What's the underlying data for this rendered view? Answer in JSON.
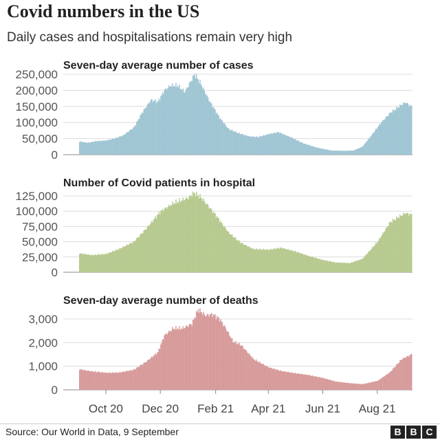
{
  "header": {
    "title": "Covid numbers in the US",
    "subtitle": "Daily cases and hospitalisations remain very high"
  },
  "footer": {
    "source": "Source: Our World in Data, 9 September",
    "logo_letters": [
      "B",
      "B",
      "C"
    ]
  },
  "colors": {
    "cases": "#9fc5d3",
    "hospital": "#b6c98e",
    "deaths": "#d79a9a",
    "grid": "#dcdcdc",
    "axis": "#999999"
  },
  "chart_data": [
    {
      "type": "bar",
      "title": "Seven-day average number of cases",
      "ylim": [
        0,
        250000
      ],
      "yticks": [
        0,
        50000,
        100000,
        150000,
        200000,
        250000
      ],
      "ytick_labels": [
        "0",
        "50,000",
        "100,000",
        "150,000",
        "200,000",
        "250,000"
      ],
      "date_range": [
        "2020-09-01",
        "2021-09-08"
      ],
      "series": [
        {
          "points": [
            [
              "2020-09-01",
              41000
            ],
            [
              "2020-09-10",
              37000
            ],
            [
              "2020-09-20",
              42000
            ],
            [
              "2020-10-01",
              44000
            ],
            [
              "2020-10-10",
              50000
            ],
            [
              "2020-10-20",
              60000
            ],
            [
              "2020-11-01",
              85000
            ],
            [
              "2020-11-10",
              130000
            ],
            [
              "2020-11-20",
              170000
            ],
            [
              "2020-11-28",
              165000
            ],
            [
              "2020-12-05",
              200000
            ],
            [
              "2020-12-12",
              215000
            ],
            [
              "2020-12-20",
              215000
            ],
            [
              "2020-12-28",
              195000
            ],
            [
              "2021-01-03",
              225000
            ],
            [
              "2021-01-08",
              250000
            ],
            [
              "2021-01-14",
              225000
            ],
            [
              "2021-01-25",
              165000
            ],
            [
              "2021-02-05",
              115000
            ],
            [
              "2021-02-15",
              80000
            ],
            [
              "2021-02-25",
              68000
            ],
            [
              "2021-03-10",
              57000
            ],
            [
              "2021-03-20",
              55000
            ],
            [
              "2021-04-01",
              64000
            ],
            [
              "2021-04-12",
              70000
            ],
            [
              "2021-04-25",
              55000
            ],
            [
              "2021-05-10",
              35000
            ],
            [
              "2021-05-25",
              22000
            ],
            [
              "2021-06-10",
              13000
            ],
            [
              "2021-06-25",
              12000
            ],
            [
              "2021-07-05",
              13000
            ],
            [
              "2021-07-15",
              25000
            ],
            [
              "2021-07-25",
              60000
            ],
            [
              "2021-08-05",
              100000
            ],
            [
              "2021-08-15",
              130000
            ],
            [
              "2021-08-25",
              150000
            ],
            [
              "2021-09-01",
              163000
            ],
            [
              "2021-09-05",
              155000
            ],
            [
              "2021-09-08",
              150000
            ]
          ]
        }
      ]
    },
    {
      "type": "bar",
      "title": "Number of Covid patients in hospital",
      "ylim": [
        0,
        125000
      ],
      "yticks": [
        0,
        25000,
        50000,
        75000,
        100000,
        125000
      ],
      "ytick_labels": [
        "0",
        "25,000",
        "50,000",
        "75,000",
        "100,000",
        "125,000"
      ],
      "date_range": [
        "2020-09-01",
        "2021-09-08"
      ],
      "series": [
        {
          "points": [
            [
              "2020-09-01",
              31000
            ],
            [
              "2020-09-15",
              28000
            ],
            [
              "2020-10-01",
              30000
            ],
            [
              "2020-10-15",
              38000
            ],
            [
              "2020-11-01",
              50000
            ],
            [
              "2020-11-15",
              72000
            ],
            [
              "2020-12-01",
              100000
            ],
            [
              "2020-12-15",
              113000
            ],
            [
              "2021-01-01",
              122000
            ],
            [
              "2021-01-07",
              130000
            ],
            [
              "2021-01-15",
              123000
            ],
            [
              "2021-02-01",
              93000
            ],
            [
              "2021-02-15",
              65000
            ],
            [
              "2021-03-01",
              48000
            ],
            [
              "2021-03-15",
              38000
            ],
            [
              "2021-04-01",
              37000
            ],
            [
              "2021-04-15",
              40000
            ],
            [
              "2021-05-01",
              34000
            ],
            [
              "2021-05-15",
              27000
            ],
            [
              "2021-06-01",
              20000
            ],
            [
              "2021-06-15",
              16000
            ],
            [
              "2021-07-01",
              15000
            ],
            [
              "2021-07-15",
              22000
            ],
            [
              "2021-08-01",
              50000
            ],
            [
              "2021-08-15",
              82000
            ],
            [
              "2021-09-01",
              97000
            ],
            [
              "2021-09-08",
              94000
            ]
          ]
        }
      ]
    },
    {
      "type": "bar",
      "title": "Seven-day average number of deaths",
      "ylim": [
        0,
        3000
      ],
      "yticks": [
        0,
        1000,
        2000,
        3000
      ],
      "ytick_labels": [
        "0",
        "1,000",
        "2,000",
        "3,000"
      ],
      "date_range": [
        "2020-09-01",
        "2021-09-08"
      ],
      "xticks": [
        "2020-10-01",
        "2020-12-01",
        "2021-02-01",
        "2021-04-01",
        "2021-06-01",
        "2021-08-01"
      ],
      "xtick_labels": [
        "Oct 20",
        "Dec 20",
        "Feb 21",
        "Apr 21",
        "Jun 21",
        "Aug 21"
      ],
      "series": [
        {
          "points": [
            [
              "2020-09-01",
              870
            ],
            [
              "2020-09-15",
              780
            ],
            [
              "2020-10-01",
              720
            ],
            [
              "2020-10-15",
              730
            ],
            [
              "2020-11-01",
              850
            ],
            [
              "2020-11-15",
              1200
            ],
            [
              "2020-11-28",
              1600
            ],
            [
              "2020-12-05",
              2300
            ],
            [
              "2020-12-15",
              2600
            ],
            [
              "2020-12-25",
              2600
            ],
            [
              "2021-01-05",
              2800
            ],
            [
              "2021-01-12",
              3400
            ],
            [
              "2021-01-20",
              3150
            ],
            [
              "2021-01-28",
              3200
            ],
            [
              "2021-02-05",
              3000
            ],
            [
              "2021-02-12",
              2600
            ],
            [
              "2021-02-20",
              2050
            ],
            [
              "2021-03-01",
              1900
            ],
            [
              "2021-03-15",
              1300
            ],
            [
              "2021-04-01",
              950
            ],
            [
              "2021-04-15",
              800
            ],
            [
              "2021-05-01",
              700
            ],
            [
              "2021-05-15",
              630
            ],
            [
              "2021-06-01",
              500
            ],
            [
              "2021-06-15",
              350
            ],
            [
              "2021-07-01",
              280
            ],
            [
              "2021-07-15",
              240
            ],
            [
              "2021-08-01",
              380
            ],
            [
              "2021-08-15",
              750
            ],
            [
              "2021-08-28",
              1300
            ],
            [
              "2021-09-08",
              1500
            ]
          ]
        }
      ]
    }
  ]
}
